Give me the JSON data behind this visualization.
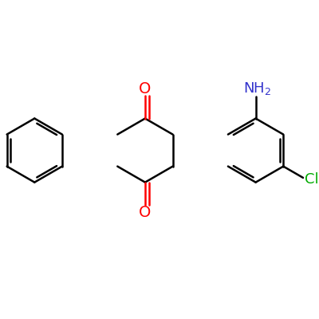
{
  "background_color": "#ffffff",
  "bond_color": "#000000",
  "o_color": "#ff0000",
  "n_color": "#3333cc",
  "cl_color": "#00aa00",
  "line_width": 1.8,
  "dbo": 0.12,
  "figsize": [
    4.0,
    4.0
  ],
  "dpi": 100,
  "xlim": [
    0,
    10
  ],
  "ylim": [
    0,
    10
  ]
}
